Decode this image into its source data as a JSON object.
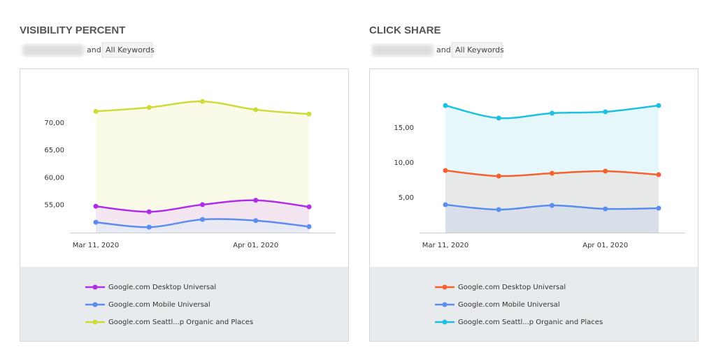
{
  "chart_data": [
    {
      "type": "area",
      "title": "VISIBILITY PERCENT",
      "filter_joiner": "and",
      "filter": "All Keywords",
      "categories": [
        "Mar 11, 2020",
        null,
        null,
        "Apr 01, 2020",
        null
      ],
      "ylim": [
        50,
        78
      ],
      "yticks": [
        {
          "value": 55,
          "label": "55,00"
        },
        {
          "value": 60,
          "label": "60,00"
        },
        {
          "value": 65,
          "label": "65,00"
        },
        {
          "value": 70,
          "label": "70,00"
        }
      ],
      "series": [
        {
          "name": "Google.com Desktop Universal",
          "color": "#b02ee8",
          "fill": "#f3e3f1",
          "values": [
            54.8,
            53.8,
            55.1,
            55.9,
            54.7
          ]
        },
        {
          "name": "Google.com Mobile Universal",
          "color": "#5b8def",
          "fill": "#e6e9f4",
          "values": [
            51.9,
            51.0,
            52.4,
            52.2,
            51.1
          ]
        },
        {
          "name": "Google.com Seattl...p Organic and Places",
          "color": "#cddc39",
          "fill": "#f8fbe6",
          "values": [
            72.1,
            72.8,
            73.9,
            72.4,
            71.6
          ]
        }
      ]
    },
    {
      "type": "area",
      "title": "CLICK SHARE",
      "filter_joiner": "and",
      "filter": "All Keywords",
      "categories": [
        "Mar 11, 2020",
        null,
        null,
        "Apr 01, 2020",
        null
      ],
      "ylim": [
        0,
        22
      ],
      "yticks": [
        {
          "value": 5,
          "label": "5,00"
        },
        {
          "value": 10,
          "label": "10,00"
        },
        {
          "value": 15,
          "label": "15,00"
        }
      ],
      "series": [
        {
          "name": "Google.com Desktop Universal",
          "color": "#f4622e",
          "fill": "#e7e7e5",
          "values": [
            8.9,
            8.1,
            8.5,
            8.8,
            8.3
          ]
        },
        {
          "name": "Google.com Mobile Universal",
          "color": "#5b8def",
          "fill": "#d7dee9",
          "values": [
            4.0,
            3.3,
            3.9,
            3.4,
            3.5
          ]
        },
        {
          "name": "Google.com Seattl...p Organic and Places",
          "color": "#1ec0e0",
          "fill": "#e2f6fb",
          "values": [
            18.2,
            16.4,
            17.1,
            17.3,
            18.2
          ]
        }
      ]
    }
  ]
}
